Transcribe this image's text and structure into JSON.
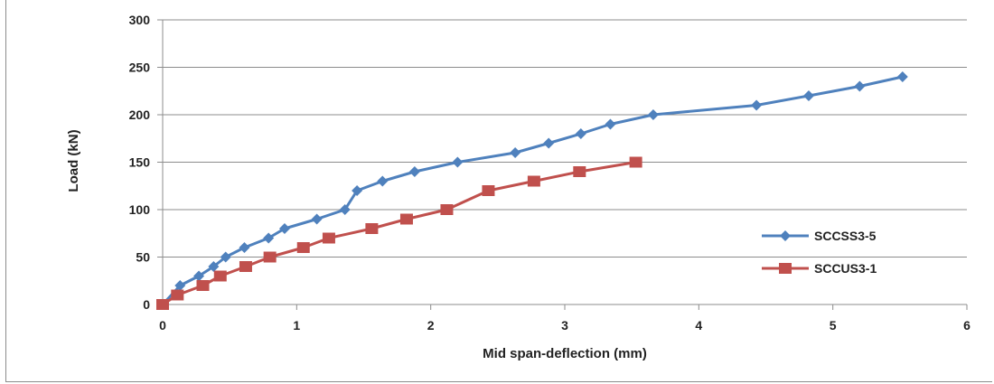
{
  "chart_data": {
    "type": "line",
    "title": "",
    "xlabel": "Mid span-deflection  (mm)",
    "ylabel": "Load (kN)",
    "xlim": [
      0,
      6
    ],
    "ylim": [
      0,
      300
    ],
    "xticks": [
      "0",
      "1",
      "2",
      "3",
      "4",
      "5",
      "6"
    ],
    "yticks": [
      "0",
      "50",
      "100",
      "150",
      "200",
      "250",
      "300"
    ],
    "grid": "horizontal",
    "legend_position": "right",
    "series": [
      {
        "name": "SCCSS3-5",
        "color": "#4f81bd",
        "marker": "diamond",
        "points": [
          [
            0,
            0
          ],
          [
            0.13,
            20
          ],
          [
            0.27,
            30
          ],
          [
            0.38,
            40
          ],
          [
            0.47,
            50
          ],
          [
            0.61,
            60
          ],
          [
            0.79,
            70
          ],
          [
            0.91,
            80
          ],
          [
            1.15,
            90
          ],
          [
            1.36,
            100
          ],
          [
            1.45,
            120
          ],
          [
            1.64,
            130
          ],
          [
            1.88,
            140
          ],
          [
            2.2,
            150
          ],
          [
            2.63,
            160
          ],
          [
            2.88,
            170
          ],
          [
            3.12,
            180
          ],
          [
            3.34,
            190
          ],
          [
            3.66,
            200
          ],
          [
            4.43,
            210
          ],
          [
            4.82,
            220
          ],
          [
            5.2,
            230
          ],
          [
            5.52,
            240
          ]
        ]
      },
      {
        "name": "SCCUS3-1",
        "color": "#c0504d",
        "marker": "square",
        "points": [
          [
            0,
            0
          ],
          [
            0.11,
            10
          ],
          [
            0.3,
            20
          ],
          [
            0.43,
            30
          ],
          [
            0.62,
            40
          ],
          [
            0.8,
            50
          ],
          [
            1.05,
            60
          ],
          [
            1.24,
            70
          ],
          [
            1.56,
            80
          ],
          [
            1.82,
            90
          ],
          [
            2.12,
            100
          ],
          [
            2.43,
            120
          ],
          [
            2.77,
            130
          ],
          [
            3.11,
            140
          ],
          [
            3.53,
            150
          ]
        ]
      }
    ]
  }
}
